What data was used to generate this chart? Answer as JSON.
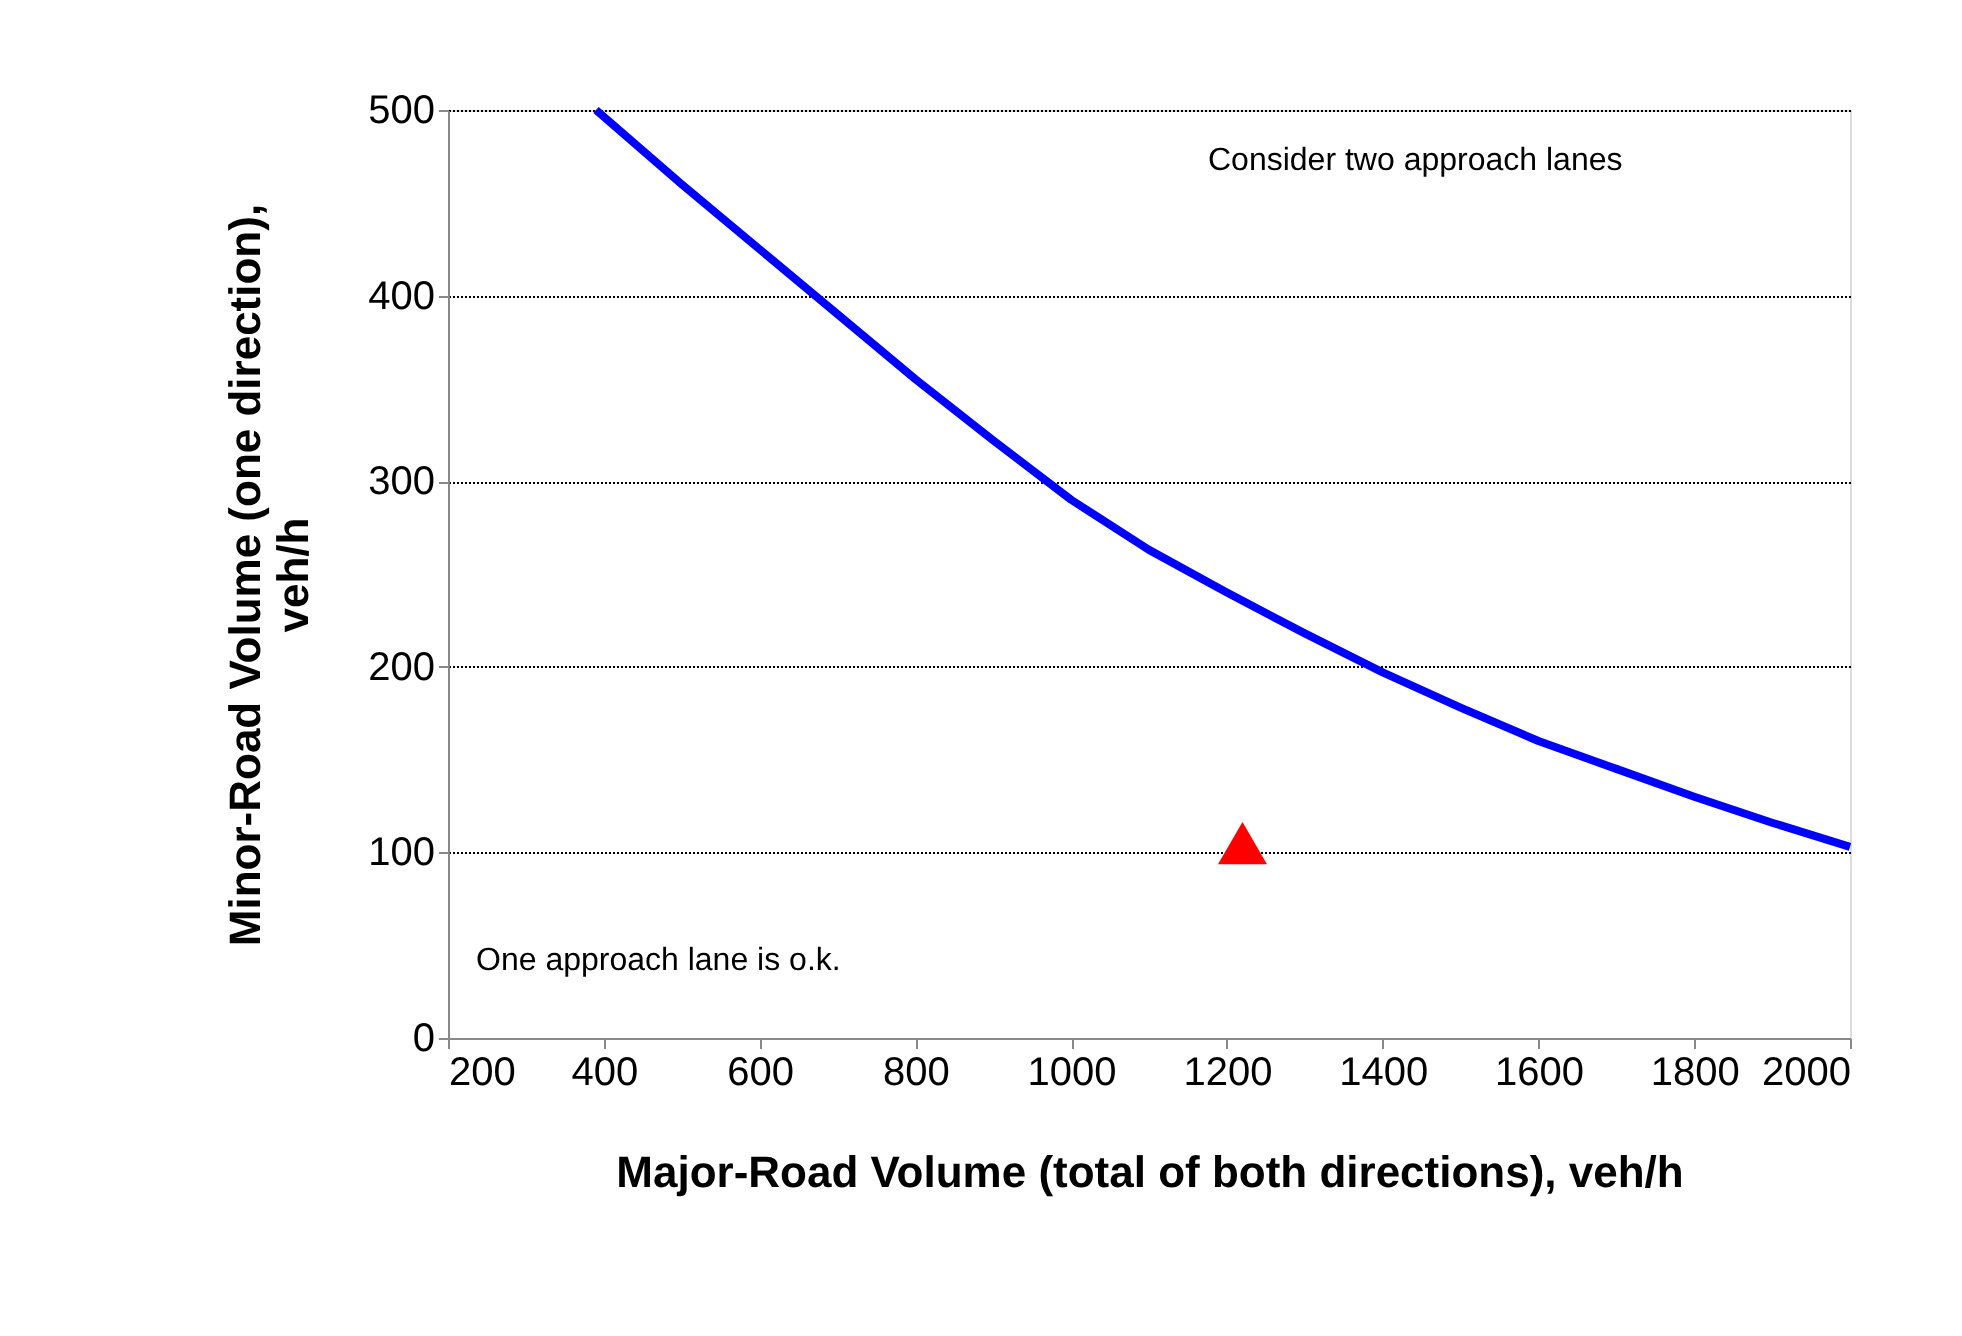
{
  "chart_data": {
    "type": "line",
    "xlabel": "Major-Road Volume (total of both directions), veh/h",
    "ylabel": "Minor-Road Volume (one direction), veh/h",
    "xlim": [
      200,
      2000
    ],
    "xticks": [
      200,
      400,
      600,
      800,
      1000,
      1200,
      1400,
      1600,
      1800,
      2000
    ],
    "ylim": [
      0,
      500
    ],
    "yticks": [
      0,
      100,
      200,
      300,
      400,
      500
    ],
    "grid": "y",
    "series": [
      {
        "color": "#0000ff",
        "marker": "none",
        "line_style": "solid",
        "x": [
          390,
          500,
          600,
          700,
          800,
          900,
          1000,
          1100,
          1200,
          1300,
          1400,
          1500,
          1600,
          1700,
          1800,
          1900,
          2000
        ],
        "values": [
          500,
          460,
          425,
          390,
          355,
          322,
          290,
          263,
          240,
          218,
          197,
          178,
          160,
          145,
          130,
          116,
          103
        ]
      },
      {
        "type": "scatter",
        "color": "#ff0000",
        "marker": "triangle",
        "x": [
          1220
        ],
        "values": [
          105
        ]
      }
    ],
    "annotations": [
      "Consider two approach lanes",
      "One approach lane is o.k."
    ]
  }
}
